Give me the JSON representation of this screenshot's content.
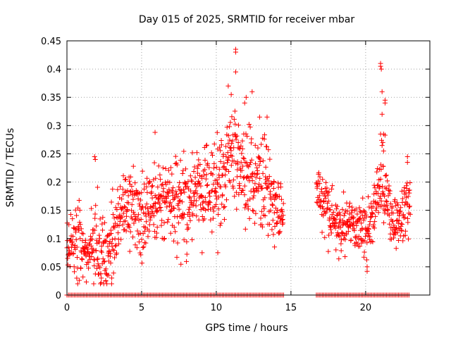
{
  "chart_data": {
    "type": "scatter",
    "title": "Day 015 of 2025, SRMTID for receiver mbar",
    "xlabel": "GPS time / hours",
    "ylabel": "SRMTID / TECUs",
    "xlim": [
      0,
      24.3
    ],
    "ylim": [
      0,
      0.45
    ],
    "xticks": [
      0,
      5,
      10,
      15,
      20
    ],
    "xtick_labels": [
      "0",
      "5",
      "10",
      "15",
      "20"
    ],
    "yticks": [
      0,
      0.05,
      0.1,
      0.15,
      0.2,
      0.25,
      0.3,
      0.35,
      0.4,
      0.45
    ],
    "ytick_labels": [
      "0",
      "0.05",
      "0.1",
      "0.15",
      "0.2",
      "0.25",
      "0.3",
      "0.35",
      "0.4",
      "0.45"
    ],
    "grid": true,
    "marker": "+",
    "color": "#ff0000",
    "series": [
      {
        "name": "SRMTID",
        "segments": [
          {
            "t_start": 0.0,
            "t_end": 14.5
          },
          {
            "t_start": 16.7,
            "t_end": 23.0
          }
        ],
        "envelope": [
          {
            "t": 0.0,
            "mean": 0.1,
            "spread": 0.03
          },
          {
            "t": 0.5,
            "mean": 0.09,
            "spread": 0.04
          },
          {
            "t": 1.0,
            "mean": 0.1,
            "spread": 0.04
          },
          {
            "t": 1.5,
            "mean": 0.07,
            "spread": 0.03
          },
          {
            "t": 2.0,
            "mean": 0.09,
            "spread": 0.06
          },
          {
            "t": 2.5,
            "mean": 0.07,
            "spread": 0.04
          },
          {
            "t": 3.0,
            "mean": 0.1,
            "spread": 0.04
          },
          {
            "t": 3.5,
            "mean": 0.15,
            "spread": 0.05
          },
          {
            "t": 4.0,
            "mean": 0.15,
            "spread": 0.04
          },
          {
            "t": 5.0,
            "mean": 0.14,
            "spread": 0.05
          },
          {
            "t": 6.0,
            "mean": 0.17,
            "spread": 0.05
          },
          {
            "t": 7.0,
            "mean": 0.16,
            "spread": 0.05
          },
          {
            "t": 8.0,
            "mean": 0.16,
            "spread": 0.05
          },
          {
            "t": 9.0,
            "mean": 0.19,
            "spread": 0.05
          },
          {
            "t": 10.0,
            "mean": 0.19,
            "spread": 0.05
          },
          {
            "t": 10.5,
            "mean": 0.22,
            "spread": 0.06
          },
          {
            "t": 11.0,
            "mean": 0.26,
            "spread": 0.07
          },
          {
            "t": 11.5,
            "mean": 0.24,
            "spread": 0.06
          },
          {
            "t": 12.0,
            "mean": 0.22,
            "spread": 0.06
          },
          {
            "t": 13.0,
            "mean": 0.2,
            "spread": 0.05
          },
          {
            "t": 13.5,
            "mean": 0.19,
            "spread": 0.05
          },
          {
            "t": 14.0,
            "mean": 0.16,
            "spread": 0.04
          },
          {
            "t": 14.5,
            "mean": 0.14,
            "spread": 0.03
          },
          {
            "t": 16.7,
            "mean": 0.19,
            "spread": 0.02
          },
          {
            "t": 17.5,
            "mean": 0.15,
            "spread": 0.04
          },
          {
            "t": 18.0,
            "mean": 0.12,
            "spread": 0.03
          },
          {
            "t": 18.5,
            "mean": 0.12,
            "spread": 0.03
          },
          {
            "t": 19.0,
            "mean": 0.13,
            "spread": 0.03
          },
          {
            "t": 19.5,
            "mean": 0.13,
            "spread": 0.03
          },
          {
            "t": 20.0,
            "mean": 0.1,
            "spread": 0.04
          },
          {
            "t": 20.5,
            "mean": 0.14,
            "spread": 0.04
          },
          {
            "t": 21.0,
            "mean": 0.2,
            "spread": 0.05
          },
          {
            "t": 21.5,
            "mean": 0.15,
            "spread": 0.04
          },
          {
            "t": 22.0,
            "mean": 0.12,
            "spread": 0.03
          },
          {
            "t": 22.5,
            "mean": 0.13,
            "spread": 0.03
          },
          {
            "t": 23.0,
            "mean": 0.16,
            "spread": 0.05
          }
        ],
        "peaks": [
          {
            "t": 11.3,
            "v": 0.435
          },
          {
            "t": 11.3,
            "v": 0.43
          },
          {
            "t": 11.3,
            "v": 0.395
          },
          {
            "t": 10.8,
            "v": 0.37
          },
          {
            "t": 11.0,
            "v": 0.355
          },
          {
            "t": 12.4,
            "v": 0.36
          },
          {
            "t": 12.0,
            "v": 0.35
          },
          {
            "t": 11.9,
            "v": 0.34
          },
          {
            "t": 12.9,
            "v": 0.315
          },
          {
            "t": 13.4,
            "v": 0.315
          },
          {
            "t": 5.9,
            "v": 0.288
          },
          {
            "t": 21.0,
            "v": 0.41
          },
          {
            "t": 21.0,
            "v": 0.405
          },
          {
            "t": 21.05,
            "v": 0.4
          },
          {
            "t": 21.1,
            "v": 0.36
          },
          {
            "t": 21.3,
            "v": 0.345
          },
          {
            "t": 21.3,
            "v": 0.34
          },
          {
            "t": 21.1,
            "v": 0.32
          },
          {
            "t": 21.2,
            "v": 0.285
          },
          {
            "t": 21.3,
            "v": 0.283
          },
          {
            "t": 21.0,
            "v": 0.285
          },
          {
            "t": 21.15,
            "v": 0.27
          },
          {
            "t": 21.2,
            "v": 0.255
          },
          {
            "t": 22.8,
            "v": 0.245
          },
          {
            "t": 22.8,
            "v": 0.235
          },
          {
            "t": 1.85,
            "v": 0.245
          },
          {
            "t": 1.9,
            "v": 0.24
          },
          {
            "t": 2.6,
            "v": 0.025
          },
          {
            "t": 2.3,
            "v": 0.03
          },
          {
            "t": 3.0,
            "v": 0.03
          },
          {
            "t": 2.8,
            "v": 0.035
          },
          {
            "t": 20.1,
            "v": 0.042
          },
          {
            "t": 20.1,
            "v": 0.05
          },
          {
            "t": 9.05,
            "v": 0.075
          },
          {
            "t": 10.1,
            "v": 0.075
          },
          {
            "t": 13.9,
            "v": 0.085
          }
        ],
        "zero_values": {
          "value": 0,
          "segments": [
            [
              0.0,
              14.5
            ],
            [
              16.7,
              23.0
            ]
          ]
        }
      }
    ]
  }
}
